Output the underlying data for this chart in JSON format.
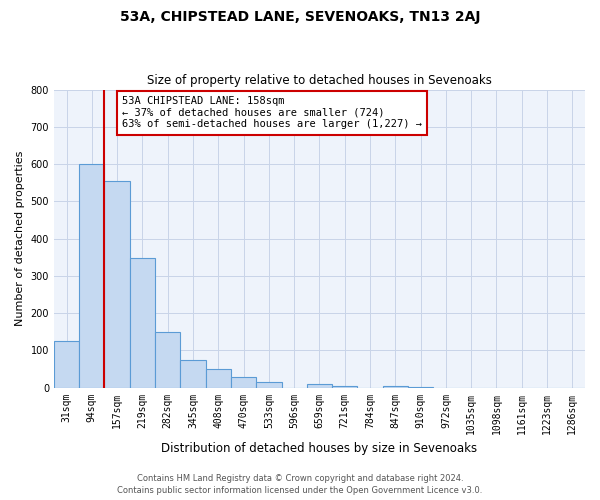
{
  "title": "53A, CHIPSTEAD LANE, SEVENOAKS, TN13 2AJ",
  "subtitle": "Size of property relative to detached houses in Sevenoaks",
  "xlabel": "Distribution of detached houses by size in Sevenoaks",
  "ylabel": "Number of detached properties",
  "bar_labels": [
    "31sqm",
    "94sqm",
    "157sqm",
    "219sqm",
    "282sqm",
    "345sqm",
    "408sqm",
    "470sqm",
    "533sqm",
    "596sqm",
    "659sqm",
    "721sqm",
    "784sqm",
    "847sqm",
    "910sqm",
    "972sqm",
    "1035sqm",
    "1098sqm",
    "1161sqm",
    "1223sqm",
    "1286sqm"
  ],
  "bar_heights": [
    125,
    600,
    555,
    347,
    150,
    75,
    50,
    30,
    15,
    0,
    10,
    5,
    0,
    5,
    2,
    0,
    0,
    0,
    0,
    0,
    0
  ],
  "bar_color": "#c5d9f1",
  "bar_edge_color": "#5b9bd5",
  "annotation_text": "53A CHIPSTEAD LANE: 158sqm\n← 37% of detached houses are smaller (724)\n63% of semi-detached houses are larger (1,227) →",
  "annotation_box_color": "#ffffff",
  "annotation_box_edge": "#cc0000",
  "marker_color": "#cc0000",
  "ylim": [
    0,
    800
  ],
  "yticks": [
    0,
    100,
    200,
    300,
    400,
    500,
    600,
    700,
    800
  ],
  "footer1": "Contains HM Land Registry data © Crown copyright and database right 2024.",
  "footer2": "Contains public sector information licensed under the Open Government Licence v3.0.",
  "bg_color": "#ffffff",
  "plot_bg_color": "#eef3fb",
  "grid_color": "#c8d4e8"
}
